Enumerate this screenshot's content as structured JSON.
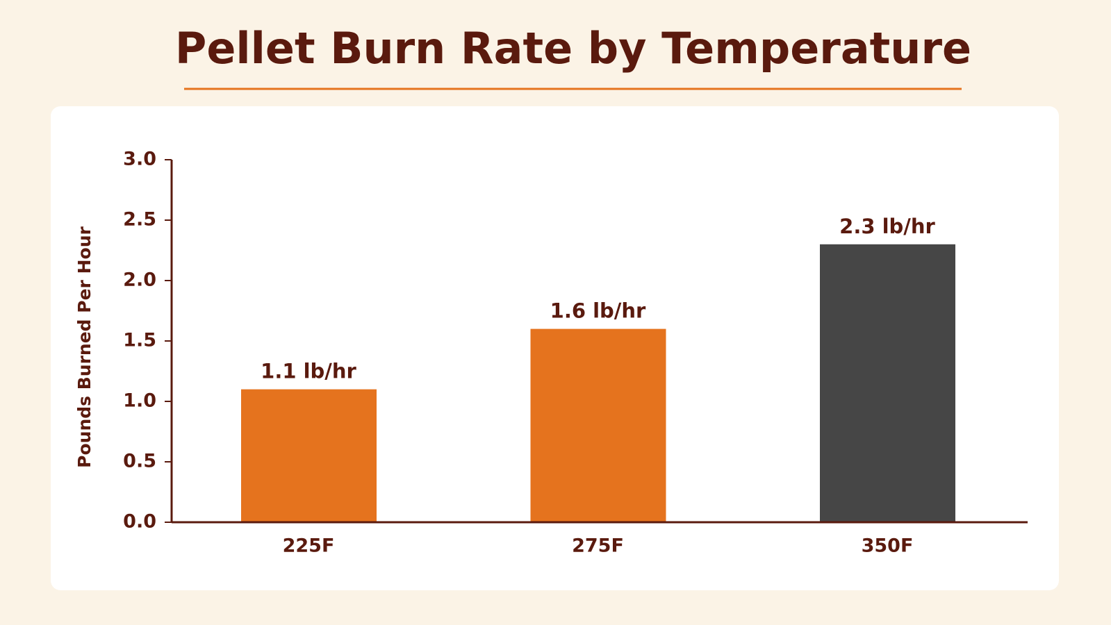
{
  "chart_data": {
    "type": "bar",
    "title": "Pellet Burn Rate by Temperature",
    "y_label": "Pounds Burned Per Hour",
    "categories": [
      "225F",
      "275F",
      "350F"
    ],
    "values": [
      1.1,
      1.6,
      2.3
    ],
    "value_labels": [
      "1.1 lb/hr",
      "1.6 lb/hr",
      "2.3 lb/hr"
    ],
    "colors": [
      "#e5731e",
      "#e5731e",
      "#464646"
    ],
    "ylim": [
      0,
      3
    ],
    "yticks": [
      {
        "value": 0,
        "label": "0.0"
      },
      0.5,
      {
        "value": 1,
        "label": "1.0"
      },
      1.5,
      {
        "value": 2,
        "label": "2.0"
      },
      2.5,
      {
        "value": 3,
        "label": "3.0"
      }
    ],
    "grid": false
  }
}
